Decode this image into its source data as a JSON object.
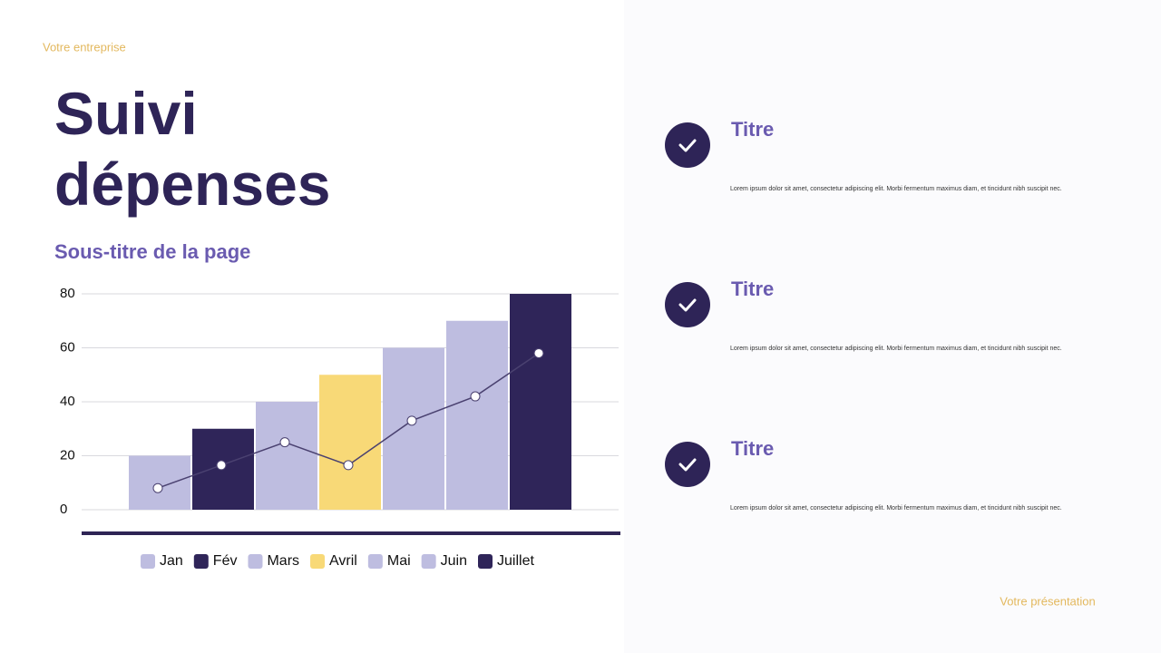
{
  "header": {
    "company": "Votre entreprise",
    "title": "Suivi dépenses",
    "subtitle": "Sous-titre de la page"
  },
  "chart_data": {
    "type": "bar",
    "categories": [
      "Jan",
      "Fév",
      "Mars",
      "Avril",
      "Mai",
      "Juin",
      "Juillet"
    ],
    "series": [
      {
        "type": "bar",
        "values": [
          20,
          30,
          40,
          50,
          60,
          70,
          80
        ],
        "colors": [
          "#bebde0",
          "#2f2559",
          "#bebde0",
          "#f8d977",
          "#bebde0",
          "#bebde0",
          "#2f2559"
        ]
      },
      {
        "type": "line",
        "values": [
          8,
          16.5,
          25,
          16.5,
          33,
          42,
          58
        ],
        "color": "#4a4170"
      }
    ],
    "ylim": [
      0,
      80
    ],
    "yticks": [
      0,
      20,
      40,
      60,
      80
    ],
    "grid": true,
    "legend": "bottom"
  },
  "items": [
    {
      "title": "Titre",
      "text": "Lorem ipsum dolor sit amet, consectetur adipiscing elit. Morbi fermentum maximus diam, et tincidunt nibh suscipit nec."
    },
    {
      "title": "Titre",
      "text": "Lorem ipsum dolor sit amet, consectetur adipiscing elit. Morbi fermentum maximus diam, et tincidunt nibh suscipit nec."
    },
    {
      "title": "Titre",
      "text": "Lorem ipsum dolor sit amet, consectetur adipiscing elit. Morbi fermentum maximus diam, et tincidunt nibh suscipit nec."
    }
  ],
  "footer": {
    "presentation": "Votre présentation"
  }
}
